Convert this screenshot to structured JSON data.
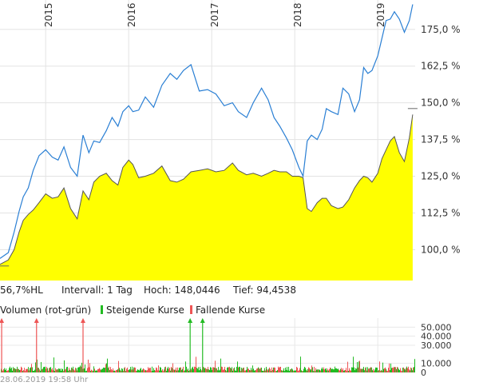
{
  "chart_data": [
    {
      "type": "area",
      "x_ticks": [
        "2015",
        "2016",
        "2017",
        "2018",
        "2019"
      ],
      "y_ticks": [
        "100,0 %",
        "112,5 %",
        "125,0 %",
        "137,5 %",
        "150,0 %",
        "162,5 %",
        "175,0 %"
      ],
      "y_tick_values": [
        100.0,
        112.5,
        125.0,
        137.5,
        150.0,
        162.5,
        175.0
      ],
      "ylim": [
        89.5,
        185.0
      ],
      "xlim": [
        2014.45,
        2019.45
      ],
      "grid": true,
      "series": [
        {
          "style": "area",
          "color": "#ffff00",
          "line_color": "#555555",
          "x": [
            2014.45,
            2014.55,
            2014.62,
            2014.68,
            2014.73,
            2014.79,
            2014.85,
            2014.92,
            2015.0,
            2015.08,
            2015.15,
            2015.22,
            2015.3,
            2015.38,
            2015.45,
            2015.52,
            2015.58,
            2015.65,
            2015.73,
            2015.8,
            2015.87,
            2015.93,
            2016.0,
            2016.05,
            2016.12,
            2016.2,
            2016.3,
            2016.4,
            2016.5,
            2016.58,
            2016.66,
            2016.75,
            2016.85,
            2016.95,
            2017.05,
            2017.15,
            2017.25,
            2017.32,
            2017.42,
            2017.5,
            2017.6,
            2017.68,
            2017.75,
            2017.82,
            2017.9,
            2017.97,
            2018.05,
            2018.1,
            2018.15,
            2018.2,
            2018.27,
            2018.33,
            2018.38,
            2018.44,
            2018.52,
            2018.58,
            2018.65,
            2018.72,
            2018.78,
            2018.83,
            2018.88,
            2018.93,
            2019.0,
            2019.05,
            2019.1,
            2019.15,
            2019.2,
            2019.26,
            2019.32,
            2019.38,
            2019.42
          ],
          "values": [
            95.0,
            96.5,
            100.0,
            106.0,
            110.0,
            112.0,
            113.5,
            116.0,
            119.0,
            117.5,
            118.0,
            121.0,
            114.0,
            110.5,
            120.0,
            117.0,
            123.0,
            125.0,
            126.0,
            123.5,
            122.0,
            128.0,
            130.5,
            129.0,
            124.5,
            125.0,
            126.0,
            128.5,
            123.5,
            123.0,
            124.0,
            126.5,
            127.0,
            127.5,
            126.5,
            127.0,
            129.5,
            127.0,
            125.5,
            126.0,
            125.0,
            126.0,
            127.0,
            126.5,
            126.5,
            125.0,
            125.0,
            124.5,
            114.0,
            113.0,
            116.0,
            117.5,
            117.5,
            115.0,
            114.0,
            114.5,
            117.0,
            121.0,
            123.5,
            125.0,
            124.5,
            123.0,
            126.0,
            131.0,
            134.0,
            137.0,
            138.5,
            133.0,
            130.0,
            138.0,
            146.0
          ]
        },
        {
          "style": "line",
          "color": "#2a7fd4",
          "x": [
            2014.45,
            2014.55,
            2014.62,
            2014.68,
            2014.73,
            2014.79,
            2014.85,
            2014.92,
            2015.0,
            2015.08,
            2015.15,
            2015.22,
            2015.3,
            2015.38,
            2015.45,
            2015.52,
            2015.58,
            2015.65,
            2015.73,
            2015.8,
            2015.87,
            2015.93,
            2016.0,
            2016.05,
            2016.12,
            2016.2,
            2016.3,
            2016.4,
            2016.5,
            2016.58,
            2016.66,
            2016.75,
            2016.85,
            2016.95,
            2017.05,
            2017.15,
            2017.25,
            2017.32,
            2017.42,
            2017.5,
            2017.6,
            2017.68,
            2017.75,
            2017.82,
            2017.9,
            2017.97,
            2018.05,
            2018.1,
            2018.15,
            2018.2,
            2018.27,
            2018.33,
            2018.38,
            2018.44,
            2018.52,
            2018.58,
            2018.65,
            2018.72,
            2018.78,
            2018.83,
            2018.88,
            2018.93,
            2019.0,
            2019.05,
            2019.1,
            2019.15,
            2019.2,
            2019.26,
            2019.32,
            2019.38,
            2019.42
          ],
          "values": [
            97.0,
            99.0,
            106.0,
            113.0,
            118.0,
            121.0,
            127.0,
            132.0,
            134.0,
            131.5,
            130.5,
            135.0,
            128.0,
            125.0,
            139.0,
            133.0,
            137.0,
            136.5,
            140.5,
            145.0,
            142.0,
            147.0,
            149.0,
            147.0,
            147.5,
            152.0,
            148.5,
            156.0,
            160.0,
            158.0,
            161.0,
            163.0,
            154.0,
            154.5,
            153.0,
            149.0,
            150.0,
            147.0,
            145.0,
            150.0,
            155.0,
            151.0,
            145.0,
            142.0,
            138.0,
            134.0,
            128.0,
            125.0,
            137.0,
            139.0,
            137.5,
            141.0,
            148.0,
            147.0,
            146.0,
            155.0,
            153.0,
            147.0,
            151.0,
            162.0,
            160.0,
            161.0,
            166.0,
            172.0,
            178.0,
            178.5,
            181.0,
            178.5,
            174.0,
            178.0,
            183.5
          ]
        }
      ],
      "markers": [
        {
          "x": 2014.5,
          "y": 94.4538
        },
        {
          "x": 2019.42,
          "y": 148.0446
        }
      ]
    },
    {
      "type": "bar",
      "title": "Volumen (rot-grün)",
      "y_ticks": [
        "50.000",
        "40.000",
        "30.000",
        "10.000",
        "0"
      ],
      "y_tick_values": [
        50000,
        40000,
        30000,
        10000,
        0
      ],
      "ylim": [
        0,
        60000
      ],
      "grid": true,
      "legend_rising": "Steigende Kurse",
      "legend_falling": "Fallende Kurse",
      "rising_color": "#22bb22",
      "falling_color": "#ee5555",
      "spike_x": [
        2014.47,
        2014.89,
        2015.45,
        2016.74,
        2016.89
      ],
      "spike_colors": [
        "#ee5555",
        "#ee5555",
        "#ee5555",
        "#22bb22",
        "#22bb22"
      ]
    }
  ],
  "info": {
    "change": "56,7%HL",
    "interval": "Intervall: 1 Tag",
    "high": "Hoch: 148,0446",
    "low": "Tief: 94,4538"
  },
  "timestamp": "28.06.2019 19:58 Uhr"
}
